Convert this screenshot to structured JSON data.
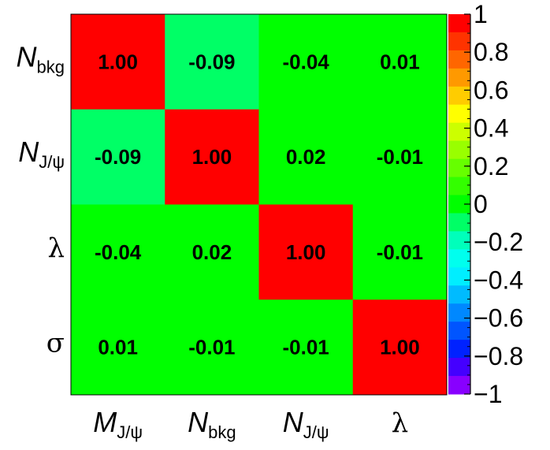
{
  "chart_data": {
    "type": "heatmap",
    "rows": [
      {
        "var": "N",
        "sub": "bkg",
        "greek": false
      },
      {
        "var": "N",
        "sub": "J/ψ",
        "greek": false
      },
      {
        "var": "λ",
        "sub": "",
        "greek": true
      },
      {
        "var": "σ",
        "sub": "",
        "greek": true
      }
    ],
    "columns": [
      {
        "var": "M",
        "sub": "J/ψ",
        "greek": false
      },
      {
        "var": "N",
        "sub": "bkg",
        "greek": false
      },
      {
        "var": "N",
        "sub": "J/ψ",
        "greek": false
      },
      {
        "var": "λ",
        "sub": "",
        "greek": true
      }
    ],
    "values": [
      [
        1.0,
        -0.09,
        -0.04,
        0.01
      ],
      [
        -0.09,
        1.0,
        0.02,
        -0.01
      ],
      [
        -0.04,
        0.02,
        1.0,
        -0.01
      ],
      [
        0.01,
        -0.01,
        -0.01,
        1.0
      ]
    ],
    "value_labels": [
      [
        "1.00",
        "-0.09",
        "-0.04",
        "0.01"
      ],
      [
        "-0.09",
        "1.00",
        "0.02",
        "-0.01"
      ],
      [
        "-0.04",
        "0.02",
        "1.00",
        "-0.01"
      ],
      [
        "0.01",
        "-0.01",
        "-0.01",
        "1.00"
      ]
    ],
    "colorbar": {
      "range": [
        -1,
        1
      ],
      "tick_values": [
        1,
        0.8,
        0.6,
        0.4,
        0.2,
        0,
        -0.2,
        -0.4,
        -0.6,
        -0.8,
        -1
      ],
      "tick_labels": [
        "1",
        "0.8",
        "0.6",
        "0.4",
        "0.2",
        "0",
        "−0.2",
        "−0.4",
        "−0.6",
        "−0.8",
        "−1"
      ],
      "bands": [
        "#ff0000",
        "#ff3300",
        "#ff6600",
        "#ff9900",
        "#ffcc00",
        "#ffff00",
        "#ccff00",
        "#99ff00",
        "#66ff00",
        "#33ff00",
        "#00ff00",
        "#00ff66",
        "#00ffbb",
        "#00ffee",
        "#00eeff",
        "#00bbff",
        "#0088ff",
        "#0055ff",
        "#0022ff",
        "#4400ff",
        "#8800ff"
      ]
    },
    "title": "",
    "xlabel": "",
    "ylabel": ""
  }
}
